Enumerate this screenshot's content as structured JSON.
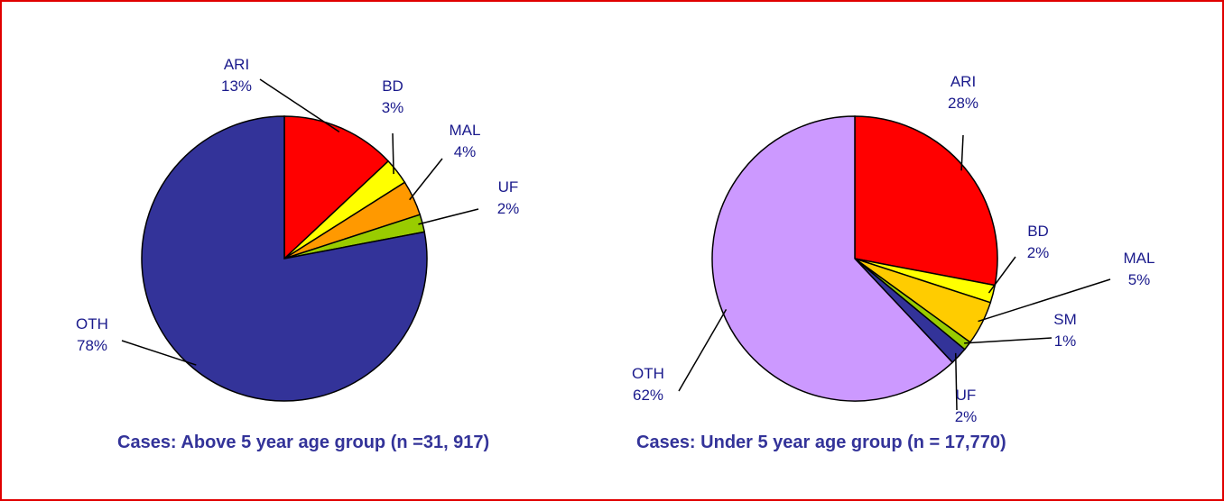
{
  "chart_data": [
    {
      "type": "pie",
      "title": "Cases: Above 5 year age group (n =31, 917)",
      "categories": [
        "ARI",
        "BD",
        "MAL",
        "UF",
        "OTH"
      ],
      "values": [
        13,
        3,
        4,
        2,
        78
      ],
      "value_labels": [
        "13%",
        "3%",
        "4%",
        "2%",
        "78%"
      ],
      "colors": [
        "#ff0000",
        "#ffff00",
        "#ff9900",
        "#99cc00",
        "#333399"
      ]
    },
    {
      "type": "pie",
      "title": "Cases: Under 5 year age group (n = 17,770)",
      "categories": [
        "ARI",
        "BD",
        "MAL",
        "SM",
        "UF",
        "OTH"
      ],
      "values": [
        28,
        2,
        5,
        1,
        2,
        62
      ],
      "value_labels": [
        "28%",
        "2%",
        "5%",
        "1%",
        "2%",
        "62%"
      ],
      "colors": [
        "#ff0000",
        "#ffff00",
        "#ffcc00",
        "#99cc00",
        "#333399",
        "#cc99ff"
      ]
    }
  ]
}
